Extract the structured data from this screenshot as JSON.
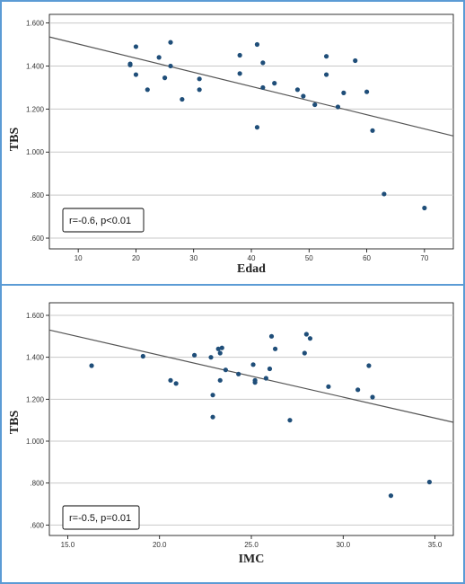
{
  "chart_data": [
    {
      "type": "scatter",
      "xlabel": "Edad",
      "ylabel": "TBS",
      "xlim": [
        5,
        75
      ],
      "ylim": [
        0.55,
        1.64
      ],
      "xticks": [
        "10",
        "20",
        "30",
        "40",
        "50",
        "60",
        "70"
      ],
      "yticks": [
        ".600",
        ".800",
        "1.000",
        "1.200",
        "1.400",
        "1.600"
      ],
      "grid": "horizontal",
      "annotation": "r=-0.6, p<0.01",
      "fit_line": {
        "x": [
          5,
          75
        ],
        "y": [
          1.535,
          1.075
        ]
      },
      "colors": {
        "points": "#1f4e79",
        "line": "#555555",
        "grid": "#c8c8c8"
      },
      "x": [
        19,
        19,
        20,
        20,
        22,
        24,
        25,
        26,
        26,
        28,
        31,
        31,
        38,
        38,
        41,
        41,
        42,
        42,
        44,
        48,
        49,
        51,
        53,
        53,
        55,
        56,
        58,
        60,
        61,
        63,
        70
      ],
      "y": [
        1.41,
        1.405,
        1.49,
        1.36,
        1.29,
        1.44,
        1.345,
        1.51,
        1.4,
        1.245,
        1.34,
        1.29,
        1.45,
        1.365,
        1.5,
        1.115,
        1.415,
        1.3,
        1.32,
        1.29,
        1.26,
        1.22,
        1.445,
        1.36,
        1.21,
        1.275,
        1.425,
        1.28,
        1.1,
        0.805,
        0.74
      ]
    },
    {
      "type": "scatter",
      "xlabel": "IMC",
      "ylabel": "TBS",
      "xlim": [
        14,
        36
      ],
      "ylim": [
        0.55,
        1.66
      ],
      "xticks": [
        "15.0",
        "20.0",
        "25.0",
        "30.0",
        "35.0"
      ],
      "yticks": [
        ".600",
        ".800",
        "1.000",
        "1.200",
        "1.400",
        "1.600"
      ],
      "grid": "horizontal",
      "annotation": "r=-0.5, p=0.01",
      "fit_line": {
        "x": [
          14,
          36
        ],
        "y": [
          1.53,
          1.09
        ]
      },
      "colors": {
        "points": "#1f4e79",
        "line": "#555555",
        "grid": "#c8c8c8"
      },
      "x": [
        16.3,
        19.1,
        20.6,
        20.9,
        21.9,
        22.8,
        22.9,
        22.9,
        23.2,
        23.4,
        23.3,
        23.3,
        23.6,
        24.3,
        25.1,
        25.2,
        25.2,
        25.8,
        26.0,
        26.1,
        26.3,
        27.1,
        27.9,
        28.0,
        28.2,
        29.2,
        30.8,
        31.4,
        31.6,
        32.6,
        34.7
      ],
      "y": [
        1.36,
        1.405,
        1.29,
        1.275,
        1.41,
        1.4,
        1.22,
        1.115,
        1.44,
        1.445,
        1.42,
        1.29,
        1.34,
        1.32,
        1.365,
        1.29,
        1.28,
        1.3,
        1.345,
        1.5,
        1.44,
        1.1,
        1.42,
        1.51,
        1.49,
        1.26,
        1.245,
        1.36,
        1.21,
        0.74,
        0.805
      ]
    }
  ]
}
